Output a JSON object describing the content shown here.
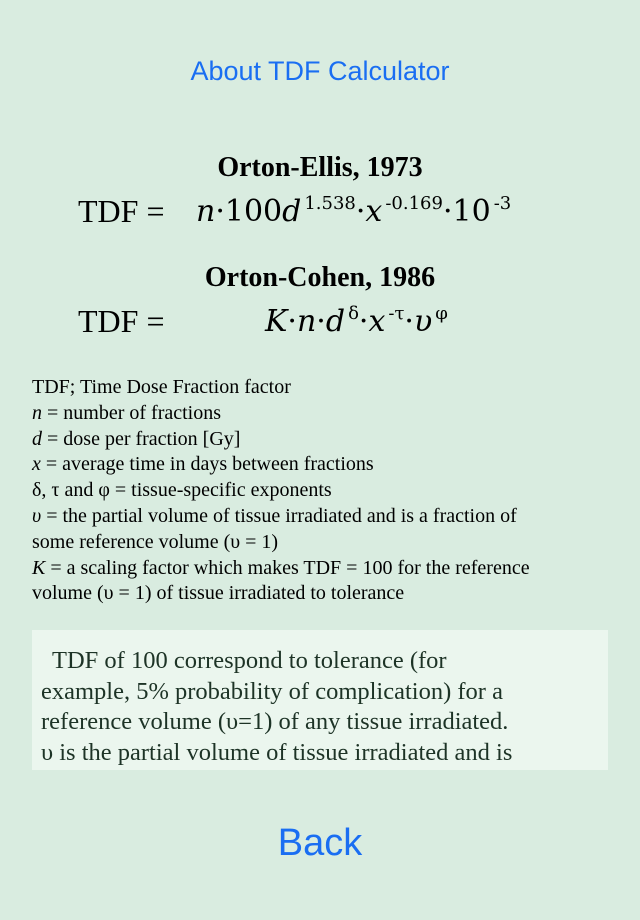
{
  "header": {
    "title": "About TDF Calculator"
  },
  "formulas": [
    {
      "heading": "Orton-Ellis, 1973",
      "lhs": "TDF =",
      "rhs": {
        "n": "n",
        "dot1": "·100",
        "d": "d",
        "exp_d": "1.538",
        "dot2": "·",
        "x": "x",
        "exp_x": "-0.169",
        "dot3": "·10",
        "exp_10": "-3"
      }
    },
    {
      "heading": "Orton-Cohen, 1986",
      "lhs": "TDF =",
      "rhs": {
        "K": "K",
        "dot1": "·",
        "n": "n",
        "dot2": "·",
        "d": "d",
        "exp_d": "δ",
        "dot3": "·",
        "x": "x",
        "exp_x": "-τ",
        "dot4": "·",
        "v": "υ",
        "exp_v": "φ"
      }
    }
  ],
  "definitions": [
    {
      "sym": "",
      "text": "TDF; Time Dose Fraction factor"
    },
    {
      "sym": "n",
      "text": " = number of fractions"
    },
    {
      "sym": "d",
      "text": " = dose per fraction [Gy]"
    },
    {
      "sym": "x",
      "text": " = average time in days between fractions"
    },
    {
      "sym": "",
      "text": "δ, τ and φ = tissue-specific exponents"
    },
    {
      "sym": "υ",
      "text": " = the partial volume of tissue irradiated and is a fraction of"
    },
    {
      "sym": "",
      "text": "some reference volume (υ = 1)"
    },
    {
      "sym": "K",
      "text": " = a scaling factor which makes TDF = 100 for the reference"
    },
    {
      "sym": "",
      "text": "volume (υ = 1) of tissue irradiated to tolerance"
    }
  ],
  "description": {
    "lines": [
      "TDF of 100 correspond to tolerance (for",
      "example, 5% probability of complication) for a",
      "reference volume (υ=1) of any tissue irradiated.",
      "υ is the partial volume of tissue irradiated and is"
    ]
  },
  "footer": {
    "back_label": "Back"
  },
  "colors": {
    "background": "#d9ece0",
    "text_box": "#ebf6ee",
    "link": "#1a6ef2"
  }
}
